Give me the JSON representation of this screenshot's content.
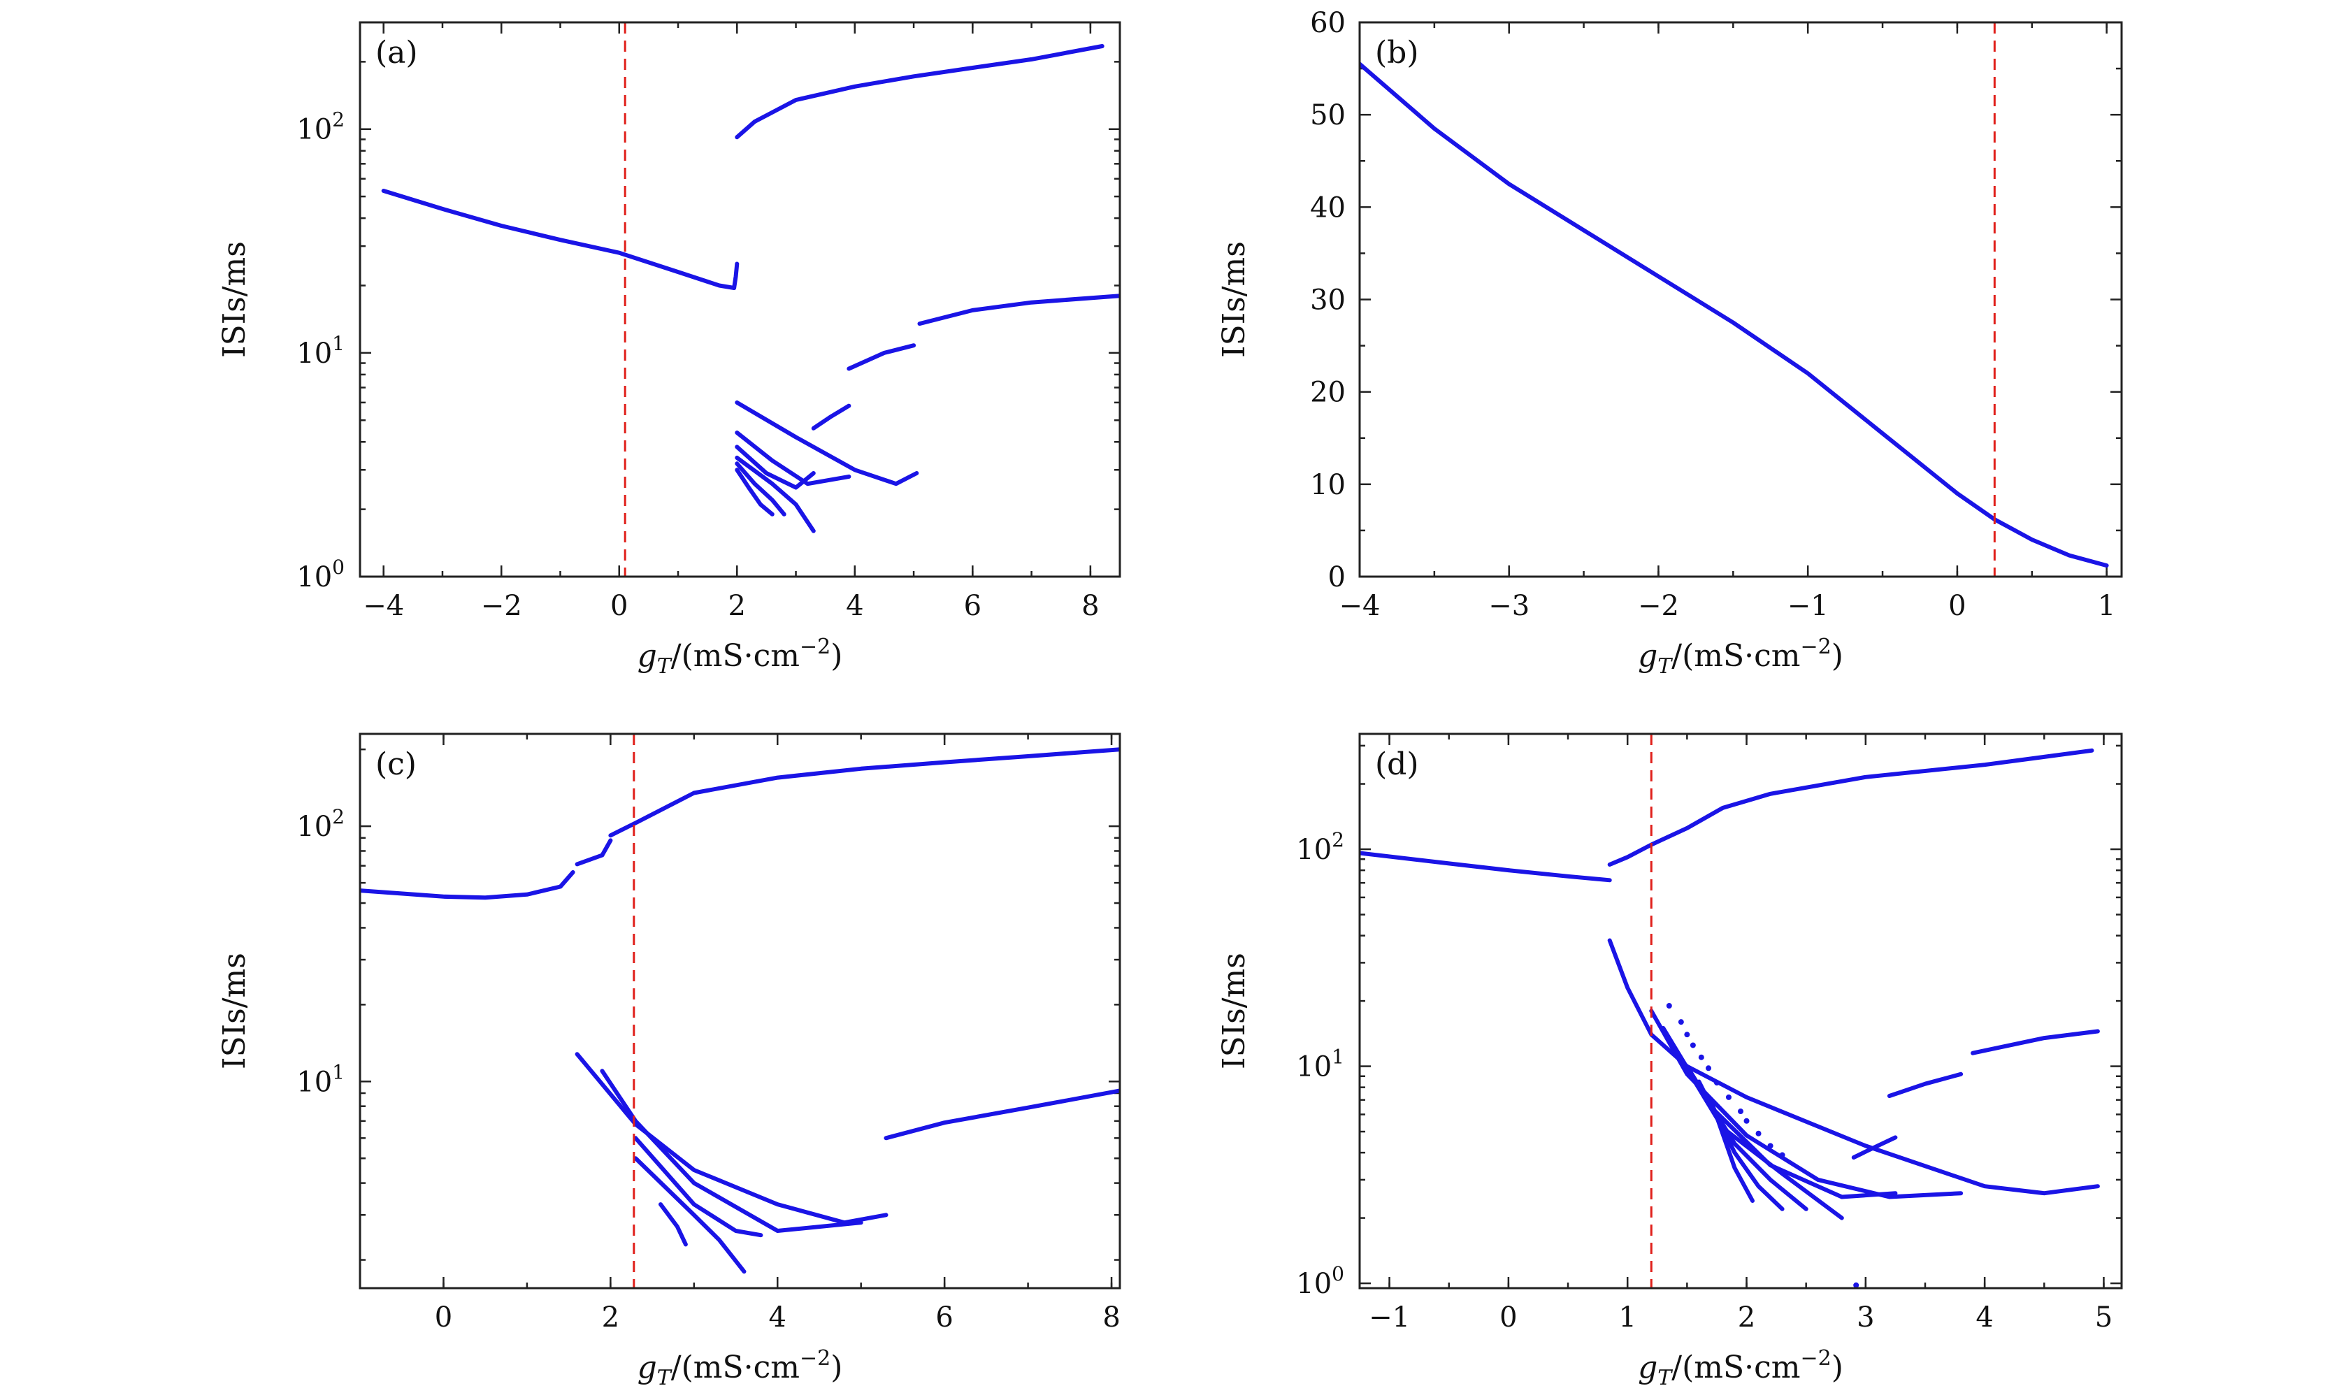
{
  "chart_data": [
    {
      "id": "a",
      "type": "scatter",
      "panel_label": "(a)",
      "xlabel_main": "g",
      "xlabel_sub": "T",
      "xlabel_rest": "/(mS·cm",
      "xlabel_sup": "−2",
      "xlabel_end": ")",
      "ylabel": "ISIs/ms",
      "xlim": [
        -4.4,
        8.5
      ],
      "ylim": [
        1,
        300
      ],
      "yscale": "log",
      "xticks": [
        -4,
        -2,
        0,
        2,
        4,
        6,
        8
      ],
      "xtick_labels": [
        "−4",
        "−2",
        "0",
        "2",
        "4",
        "6",
        "8"
      ],
      "yticks": [
        1,
        10,
        100
      ],
      "ytick_base": [
        "10",
        "10",
        "10"
      ],
      "ytick_exp": [
        "0",
        "1",
        "2"
      ],
      "vline_x": 0.1,
      "series": [
        {
          "x": [
            -4,
            -3,
            -2,
            -1,
            0,
            1,
            1.7,
            1.95
          ],
          "y": [
            53,
            44,
            37,
            32,
            28,
            23,
            20,
            19.5
          ]
        },
        {
          "x": [
            1.95,
            1.98,
            2.0
          ],
          "y": [
            19.5,
            22,
            25
          ]
        },
        {
          "x": [
            2.0,
            2.3,
            3,
            4,
            5,
            6,
            7,
            8.2
          ],
          "y": [
            92,
            108,
            135,
            155,
            172,
            188,
            205,
            235
          ]
        },
        {
          "x": [
            5.1,
            6,
            7,
            8.5
          ],
          "y": [
            13.5,
            15.5,
            16.8,
            18
          ]
        },
        {
          "x": [
            3.9,
            4.5,
            5.0
          ],
          "y": [
            8.5,
            10,
            10.8
          ]
        },
        {
          "x": [
            3.3,
            3.6,
            3.9
          ],
          "y": [
            4.6,
            5.2,
            5.8
          ]
        },
        {
          "x": [
            2.0,
            3,
            4,
            4.7,
            5.05
          ],
          "y": [
            6.0,
            4.2,
            3.0,
            2.6,
            2.9
          ]
        },
        {
          "x": [
            2.0,
            2.6,
            3.2,
            3.9
          ],
          "y": [
            4.4,
            3.3,
            2.6,
            2.8
          ]
        },
        {
          "x": [
            2.0,
            2.5,
            3.0,
            3.3
          ],
          "y": [
            3.8,
            2.9,
            2.5,
            2.9
          ]
        },
        {
          "x": [
            2.0,
            2.6,
            3.0,
            3.3
          ],
          "y": [
            3.4,
            2.6,
            2.1,
            1.6
          ]
        },
        {
          "x": [
            2.0,
            2.3,
            2.6,
            2.8
          ],
          "y": [
            3.2,
            2.6,
            2.2,
            1.9
          ]
        },
        {
          "x": [
            2.0,
            2.2,
            2.4,
            2.6
          ],
          "y": [
            3.0,
            2.5,
            2.1,
            1.9
          ]
        }
      ]
    },
    {
      "id": "b",
      "type": "scatter",
      "panel_label": "(b)",
      "xlabel_main": "g",
      "xlabel_sub": "T",
      "xlabel_rest": "/(mS·cm",
      "xlabel_sup": "−2",
      "xlabel_end": ")",
      "ylabel": "ISIs/ms",
      "xlim": [
        -4,
        1.1
      ],
      "ylim": [
        0,
        60
      ],
      "yscale": "linear",
      "xticks": [
        -4,
        -3,
        -2,
        -1,
        0,
        1
      ],
      "xtick_labels": [
        "−4",
        "−3",
        "−2",
        "−1",
        "0",
        "1"
      ],
      "yticks": [
        0,
        10,
        20,
        30,
        40,
        50,
        60
      ],
      "ytick_labels": [
        "0",
        "10",
        "20",
        "30",
        "40",
        "50",
        "60"
      ],
      "vline_x": 0.25,
      "series": [
        {
          "x": [
            -4,
            -3.5,
            -3,
            -2.5,
            -2,
            -1.5,
            -1,
            -0.5,
            0,
            0.25,
            0.5,
            0.75,
            1.0
          ],
          "y": [
            55.5,
            48.5,
            42.5,
            37.5,
            32.5,
            27.5,
            22,
            15.5,
            9,
            6.2,
            4,
            2.3,
            1.2
          ]
        }
      ]
    },
    {
      "id": "c",
      "type": "scatter",
      "panel_label": "(c)",
      "xlabel_main": "g",
      "xlabel_sub": "T",
      "xlabel_rest": "/(mS·cm",
      "xlabel_sup": "−2",
      "xlabel_end": ")",
      "ylabel": "ISIs/ms",
      "xlim": [
        -1,
        8.1
      ],
      "ylim": [
        1.55,
        230
      ],
      "yscale": "log",
      "xticks": [
        0,
        2,
        4,
        6,
        8
      ],
      "xtick_labels": [
        "0",
        "2",
        "4",
        "6",
        "8"
      ],
      "yticks": [
        10,
        100
      ],
      "ytick_base": [
        "10",
        "10"
      ],
      "ytick_exp": [
        "1",
        "2"
      ],
      "vline_x": 2.28,
      "series": [
        {
          "x": [
            -1,
            0,
            0.5,
            1,
            1.4,
            1.55
          ],
          "y": [
            56,
            53,
            52.5,
            54,
            58,
            66
          ]
        },
        {
          "x": [
            1.6,
            1.9,
            2.0
          ],
          "y": [
            71,
            77,
            88
          ]
        },
        {
          "x": [
            2.0,
            2.3,
            3,
            4,
            5,
            6,
            7,
            8.1
          ],
          "y": [
            92,
            103,
            135,
            155,
            168,
            178,
            188,
            200
          ]
        },
        {
          "x": [
            5.3,
            6,
            7,
            8.1
          ],
          "y": [
            6.0,
            6.9,
            7.9,
            9.2
          ]
        },
        {
          "x": [
            1.6,
            2.3,
            3,
            4,
            4.8,
            5.3
          ],
          "y": [
            12.8,
            6.8,
            4.5,
            3.3,
            2.8,
            3.0
          ]
        },
        {
          "x": [
            1.9,
            2.3,
            3,
            4,
            5.0
          ],
          "y": [
            11,
            7.0,
            4.0,
            2.6,
            2.8
          ]
        },
        {
          "x": [
            2.3,
            3.0,
            3.5,
            3.8
          ],
          "y": [
            6.0,
            3.3,
            2.6,
            2.5
          ]
        },
        {
          "x": [
            2.3,
            3.0,
            3.3,
            3.6
          ],
          "y": [
            5.0,
            3.0,
            2.4,
            1.8
          ]
        },
        {
          "x": [
            2.6,
            2.8,
            2.9
          ],
          "y": [
            3.3,
            2.7,
            2.3
          ]
        }
      ]
    },
    {
      "id": "d",
      "type": "scatter",
      "panel_label": "(d)",
      "xlabel_main": "g",
      "xlabel_sub": "T",
      "xlabel_rest": "/(mS·cm",
      "xlabel_sup": "−2",
      "xlabel_end": ")",
      "ylabel": "ISIs/ms",
      "xlim": [
        -1.25,
        5.15
      ],
      "ylim": [
        0.95,
        340
      ],
      "yscale": "log",
      "xticks": [
        -1,
        0,
        1,
        2,
        3,
        4,
        5
      ],
      "xtick_labels": [
        "−1",
        "0",
        "1",
        "2",
        "3",
        "4",
        "5"
      ],
      "yticks": [
        1,
        10,
        100
      ],
      "ytick_base": [
        "10",
        "10",
        "10"
      ],
      "ytick_exp": [
        "0",
        "1",
        "2"
      ],
      "vline_x": 1.2,
      "series": [
        {
          "x": [
            -1.25,
            -0.5,
            0,
            0.5,
            0.85
          ],
          "y": [
            96,
            86,
            80,
            75,
            72
          ]
        },
        {
          "x": [
            0.85,
            1.0,
            1.2,
            1.5,
            1.8,
            2.2,
            3,
            4,
            4.9
          ],
          "y": [
            85,
            92,
            105,
            125,
            155,
            180,
            215,
            245,
            285
          ]
        },
        {
          "x": [
            3.9,
            4.5,
            4.95
          ],
          "y": [
            11.5,
            13.5,
            14.5
          ]
        },
        {
          "x": [
            3.2,
            3.5,
            3.8
          ],
          "y": [
            7.3,
            8.3,
            9.2
          ]
        },
        {
          "x": [
            2.9,
            3.1,
            3.25
          ],
          "y": [
            3.8,
            4.3,
            4.7
          ]
        },
        {
          "x": [
            0.85,
            1.0,
            1.2,
            1.5,
            2,
            3,
            4,
            4.5,
            4.95
          ],
          "y": [
            38,
            23,
            14,
            10,
            7.2,
            4.3,
            2.8,
            2.6,
            2.8
          ]
        },
        {
          "x": [
            1.2,
            1.5,
            2,
            2.6,
            3.2,
            3.8
          ],
          "y": [
            18,
            9.2,
            4.8,
            3.0,
            2.5,
            2.6
          ]
        },
        {
          "x": [
            1.3,
            1.7,
            2.2,
            2.8,
            3.25
          ],
          "y": [
            15,
            6.5,
            3.5,
            2.5,
            2.6
          ]
        },
        {
          "x": [
            1.4,
            1.8,
            2.3,
            2.8
          ],
          "y": [
            12,
            5.2,
            3.2,
            2.0
          ]
        },
        {
          "x": [
            1.5,
            1.9,
            2.2,
            2.5
          ],
          "y": [
            10,
            4.4,
            3.0,
            2.2
          ]
        },
        {
          "x": [
            1.6,
            1.9,
            2.1,
            2.3
          ],
          "y": [
            8.5,
            4.0,
            2.8,
            2.2
          ]
        },
        {
          "x": [
            1.7,
            1.9,
            2.05
          ],
          "y": [
            7.0,
            3.4,
            2.4
          ]
        }
      ],
      "points": [
        {
          "x": [
            1.35,
            1.45,
            1.5,
            1.55,
            1.62,
            1.68,
            1.75,
            1.85,
            1.95,
            2.0,
            2.1,
            2.2,
            2.3,
            2.92
          ],
          "y": [
            19,
            16,
            14,
            12.5,
            11,
            9.8,
            8.4,
            7.2,
            6.2,
            5.6,
            4.9,
            4.3,
            3.9,
            0.98
          ]
        }
      ]
    }
  ]
}
